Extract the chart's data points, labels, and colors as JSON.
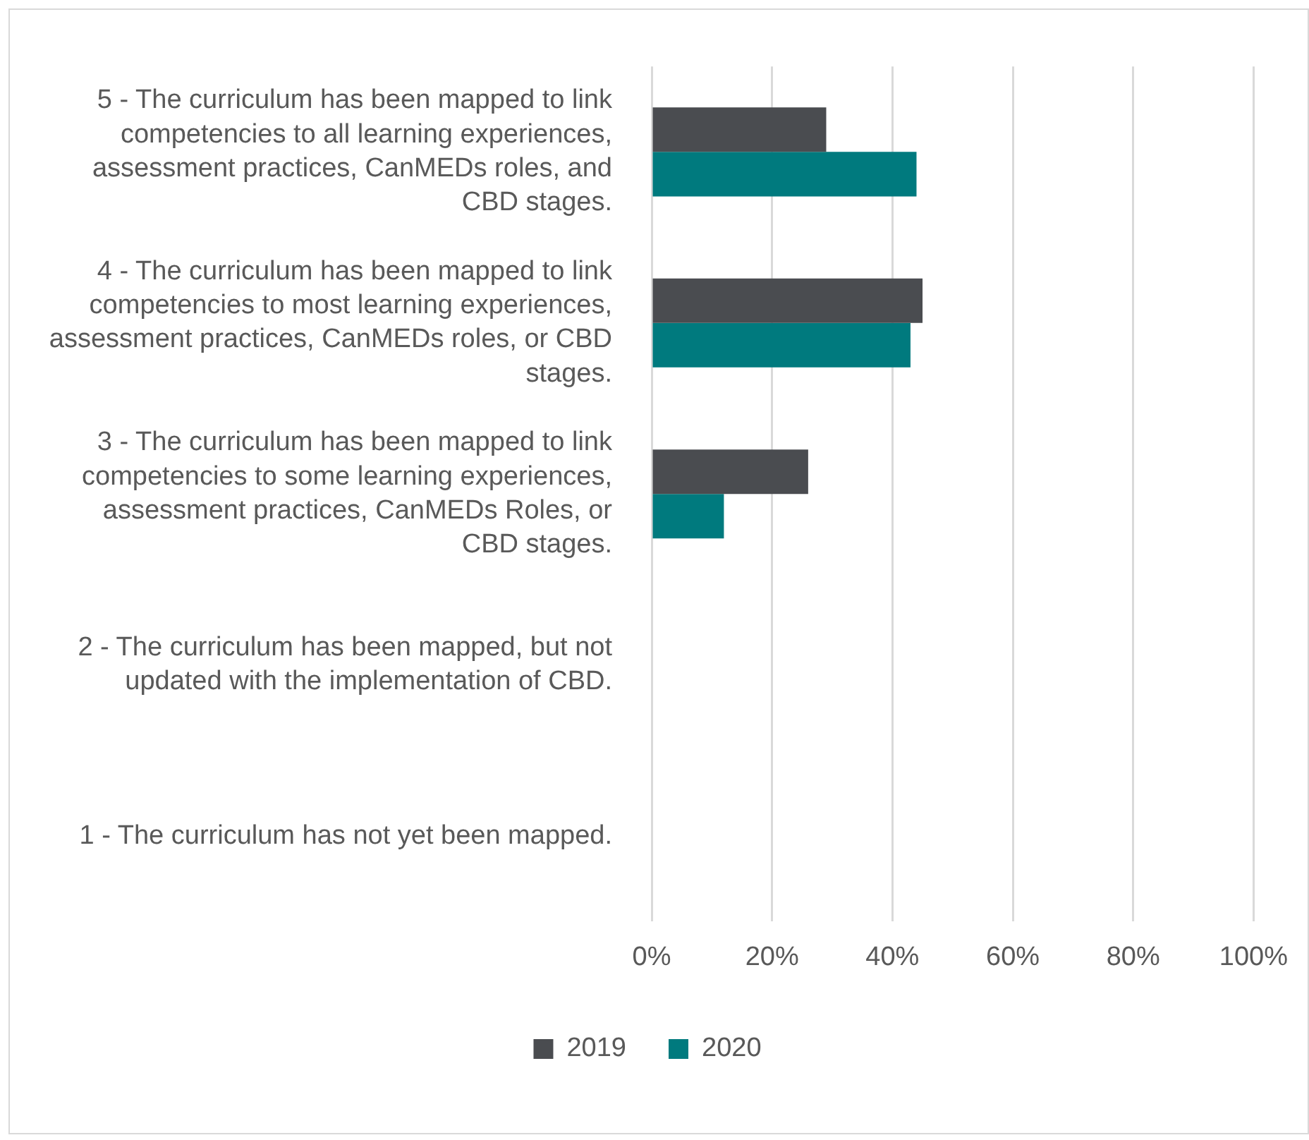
{
  "chart_data": {
    "type": "bar",
    "orientation": "horizontal",
    "categories": [
      "5 - The curriculum has been mapped to link competencies to all learning experiences, assessment practices, CanMEDs roles, and CBD stages.",
      "4 - The curriculum has been mapped to link competencies to most learning experiences, assessment practices, CanMEDs roles, or CBD stages.",
      "3 - The curriculum has been mapped to link competencies to some learning experiences, assessment practices, CanMEDs Roles, or CBD stages.",
      "2 - The curriculum has been mapped, but not updated with the implementation of CBD.",
      "1 - The curriculum has not yet been mapped."
    ],
    "series": [
      {
        "name": "2019",
        "color": "#4a4c50",
        "values": [
          29,
          45,
          26,
          0,
          0
        ]
      },
      {
        "name": "2020",
        "color": "#007a7e",
        "values": [
          44,
          43,
          12,
          0,
          0
        ]
      }
    ],
    "xlim": [
      0,
      100
    ],
    "xticks": [
      {
        "value": 0,
        "label": "0%"
      },
      {
        "value": 20,
        "label": "20%"
      },
      {
        "value": 40,
        "label": "40%"
      },
      {
        "value": 60,
        "label": "60%"
      },
      {
        "value": 80,
        "label": "80%"
      },
      {
        "value": 100,
        "label": "100%"
      }
    ],
    "grid": "x",
    "legend": "bottom"
  }
}
